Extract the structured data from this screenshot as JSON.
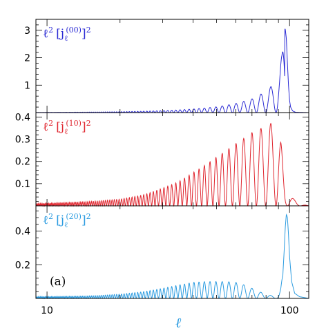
{
  "chart_data": {
    "type": "line",
    "x_scale": "log",
    "xlim": [
      9,
      120
    ],
    "x_ticks": [
      10,
      100
    ],
    "x_tick_labels": [
      "10",
      "100"
    ],
    "xlabel": "ℓ",
    "panel_tag": "(a)",
    "line_points": 1200,
    "panels": [
      {
        "name": "ℓ2 [jℓ(00)]2",
        "label_main": "ℓ",
        "label_sup1": "2",
        "label_j": "[j",
        "label_sub": "ℓ",
        "label_idx": "(00)",
        "label_close": "]",
        "label_sup2": "2",
        "color": "#2a2ad4",
        "ylim": [
          0,
          3.4
        ],
        "y_ticks": [
          1,
          2,
          3
        ],
        "y_tick_labels": [
          "1",
          "2",
          "3"
        ],
        "envelope_x": [
          9,
          20,
          30,
          40,
          50,
          60,
          70,
          80,
          85,
          88,
          91,
          93,
          94,
          95,
          96,
          97,
          98,
          99,
          100,
          101,
          103,
          106,
          120
        ],
        "envelope_y": [
          0.006,
          0.03,
          0.07,
          0.13,
          0.21,
          0.33,
          0.5,
          0.78,
          1.0,
          1.2,
          1.55,
          2.1,
          2.6,
          3.0,
          3.05,
          2.7,
          1.8,
          1.0,
          0.45,
          0.2,
          0.06,
          0.01,
          0.0
        ],
        "phase_start": 79.4,
        "oscillate_below": 95.5
      },
      {
        "name": "ℓ2 [jℓ(10)]2",
        "label_main": "ℓ",
        "label_sup1": "2",
        "label_j": "[j",
        "label_sub": "ℓ",
        "label_idx": "(10)",
        "label_close": "]",
        "label_sup2": "2",
        "color": "#e0262f",
        "ylim": [
          0,
          0.42
        ],
        "y_ticks": [
          0.1,
          0.2,
          0.3,
          0.4
        ],
        "y_tick_labels": [
          "0.1",
          "0.2",
          "0.3",
          "0.4"
        ],
        "envelope_x": [
          9,
          15,
          20,
          25,
          30,
          35,
          40,
          50,
          60,
          70,
          80,
          85,
          88,
          90,
          92,
          94,
          96,
          98,
          100,
          104,
          110,
          120
        ],
        "envelope_y": [
          0.01,
          0.02,
          0.03,
          0.05,
          0.08,
          0.11,
          0.15,
          0.22,
          0.28,
          0.33,
          0.36,
          0.375,
          0.375,
          0.36,
          0.3,
          0.18,
          0.08,
          0.05,
          0.05,
          0.03,
          0.01,
          0.0
        ],
        "phase_start": 79.4,
        "oscillate_below": 200
      },
      {
        "name": "ℓ2 [jℓ(20)]2",
        "label_main": "ℓ",
        "label_sup1": "2",
        "label_j": "[j",
        "label_sub": "ℓ",
        "label_idx": "(20)",
        "label_close": "]",
        "label_sup2": "2",
        "color": "#2a9be0",
        "ylim": [
          0,
          0.55
        ],
        "y_ticks": [
          0.2,
          0.4
        ],
        "y_tick_labels": [
          "0.2",
          "0.4"
        ],
        "envelope_x": [
          9,
          15,
          20,
          25,
          30,
          35,
          40,
          45,
          50,
          55,
          60,
          65,
          70,
          75,
          80,
          85,
          88,
          90,
          92,
          94,
          95,
          96,
          97,
          98,
          99,
          100,
          102,
          105,
          110,
          120
        ],
        "envelope_y": [
          0.01,
          0.015,
          0.025,
          0.04,
          0.06,
          0.08,
          0.095,
          0.1,
          0.1,
          0.1,
          0.095,
          0.08,
          0.06,
          0.04,
          0.025,
          0.015,
          0.01,
          0.02,
          0.06,
          0.16,
          0.28,
          0.42,
          0.5,
          0.48,
          0.38,
          0.25,
          0.1,
          0.03,
          0.01,
          0.0
        ],
        "phase_start": 79.4,
        "oscillate_below": 94
      }
    ]
  }
}
